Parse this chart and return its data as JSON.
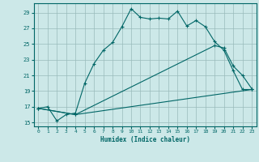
{
  "title": "",
  "xlabel": "Humidex (Indice chaleur)",
  "background_color": "#cce8e8",
  "line_color": "#006666",
  "grid_color": "#99bbbb",
  "xlim": [
    -0.5,
    23.5
  ],
  "ylim": [
    14.5,
    30.2
  ],
  "yticks": [
    15,
    17,
    19,
    21,
    23,
    25,
    27,
    29
  ],
  "xticks": [
    0,
    1,
    2,
    3,
    4,
    5,
    6,
    7,
    8,
    9,
    10,
    11,
    12,
    13,
    14,
    15,
    16,
    17,
    18,
    19,
    20,
    21,
    22,
    23
  ],
  "line1_x": [
    0,
    1,
    2,
    3,
    4,
    5,
    6,
    7,
    8,
    9,
    10,
    11,
    12,
    13,
    14,
    15,
    16,
    17,
    18,
    19,
    20,
    21,
    22,
    23
  ],
  "line1_y": [
    16.8,
    17.0,
    15.2,
    16.0,
    16.2,
    20.0,
    22.5,
    24.2,
    25.2,
    27.2,
    29.5,
    28.4,
    28.2,
    28.3,
    28.2,
    29.2,
    27.3,
    28.0,
    27.2,
    25.3,
    24.2,
    21.6,
    19.2,
    19.2
  ],
  "line2_x": [
    0,
    4,
    19,
    20,
    21,
    22,
    23
  ],
  "line2_y": [
    16.8,
    16.0,
    24.8,
    24.5,
    22.2,
    21.0,
    19.3
  ],
  "line3_x": [
    0,
    4,
    23
  ],
  "line3_y": [
    16.8,
    16.0,
    19.2
  ]
}
